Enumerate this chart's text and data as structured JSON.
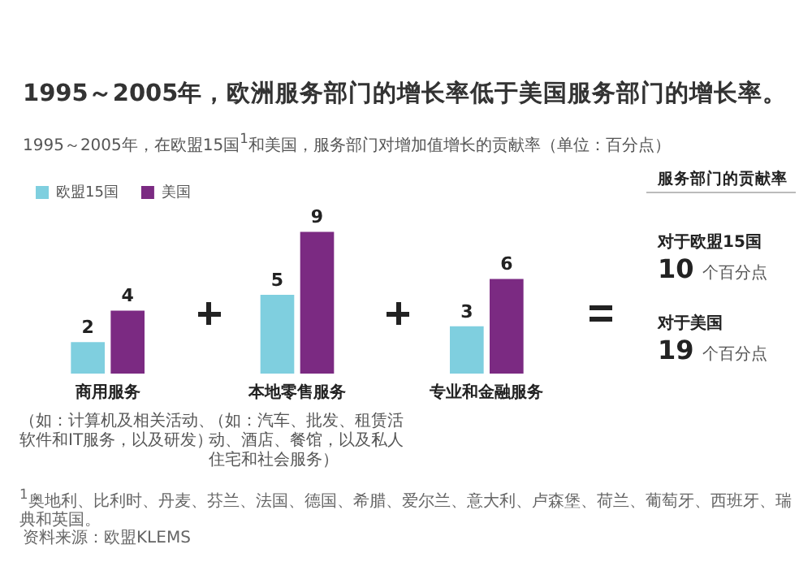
{
  "chart_data": {
    "type": "bar",
    "title": "1995～2005年，欧洲服务部门的增长率低于美国服务部门的增长率。",
    "subtitle": "1995～2005年，在欧盟15国$^{1}$和美国，服务部门对增加值增长的贡献率（单位：百分点）",
    "categories": [
      "商用服务",
      "本地零售服务",
      "专业和金融服务"
    ],
    "series": [
      {
        "name": "欧盟15国",
        "color": "#7fcfdf",
        "values": [
          2,
          5,
          3
        ]
      },
      {
        "name": "美国",
        "color": "#7b2a82",
        "values": [
          4,
          9,
          6
        ]
      }
    ],
    "data_labels": true,
    "grid": false,
    "legend": "top left",
    "tick_labels": "x",
    "annotations": [
      "（如：计算机及相关活动、软件和IT服务，以及研发）",
      "（如：汽车、批发、租赁活动、酒店、餐馆，以及私人住宅和社会服务）",
      "服务部门的贡献率",
      "对于欧盟15国",
      "10",
      "个百分点",
      "对于美国",
      "19",
      "个百分点",
      "$^{1}$奥地利、比利时、丹麦、芬兰、法国、德国、希腊、爱尔兰、意大利、卢森堡、荷兰、葡萄牙、西班牙、瑞典和英国。",
      "资料来源：欧盟KLEMS"
    ]
  }
}
